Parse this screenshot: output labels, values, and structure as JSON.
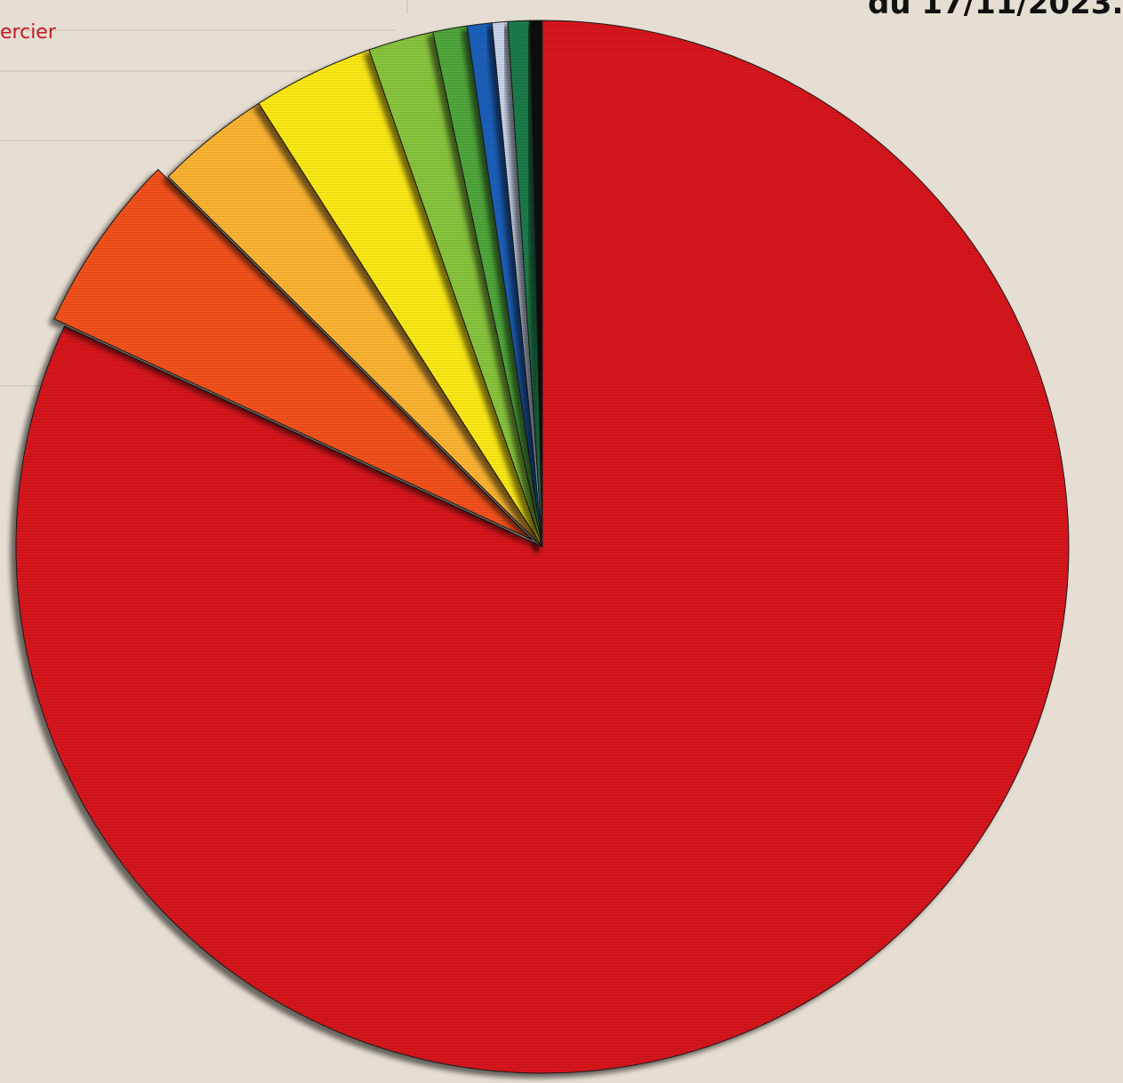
{
  "page": {
    "top_left_text": "ercier",
    "top_right_text": "du 17/11/2023."
  },
  "colors": {
    "background": "#e6ded2",
    "top_left_text": "#c21a2a",
    "top_right_text": "#111111"
  },
  "chart_data": {
    "type": "pie",
    "title": "",
    "legend": "none",
    "start": "top",
    "direction": "clockwise",
    "exploded_slice_index": 1,
    "series": [
      {
        "values": [
          85.9,
          5.8,
          3.7,
          3.9,
          2.1,
          1.1,
          0.8,
          0.5,
          0.7,
          0.4
        ],
        "colors": [
          "#d6171f",
          "#f2511b",
          "#fbb331",
          "#fbe916",
          "#88c43c",
          "#4fa63a",
          "#1c5fb9",
          "#c7d3e8",
          "#1a7a49",
          "#0a0a0a"
        ]
      }
    ]
  }
}
